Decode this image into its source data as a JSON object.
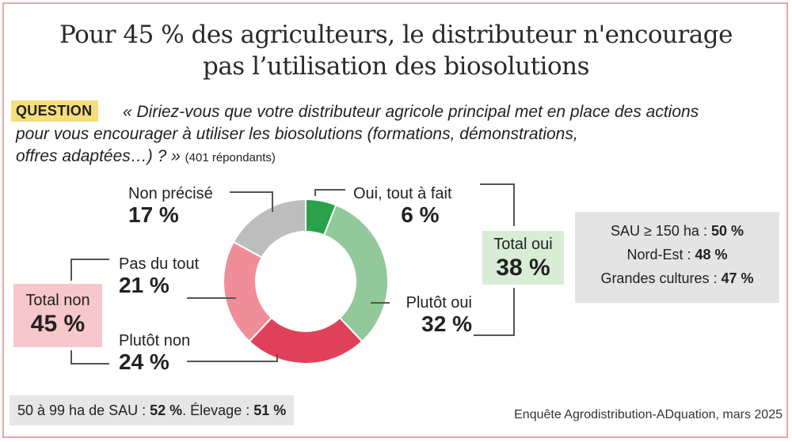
{
  "title_line1": "Pour 45 % des agriculteurs, le distributeur n'encourage",
  "title_line2": "pas l’utilisation des biosolutions",
  "question": {
    "badge": "QUESTION",
    "line1": "« Diriez-vous que votre distributeur agricole principal met en place des actions",
    "line2": "pour vous encourager à utiliser les biosolutions (formations, démonstrations,",
    "line3": "offres adaptées…) ? »",
    "respondents": "(401 répondants)"
  },
  "chart_data": {
    "type": "pie",
    "variant": "donut",
    "categories": [
      "Oui, tout à fait",
      "Plutôt oui",
      "Plutôt non",
      "Pas du tout",
      "Non précisé"
    ],
    "values": [
      6,
      32,
      24,
      21,
      17
    ],
    "value_labels": [
      "6 %",
      "32 %",
      "24 %",
      "21 %",
      "17 %"
    ],
    "colors": [
      "#2aa24a",
      "#93c99a",
      "#e0415a",
      "#ef8e98",
      "#bdbdbd"
    ],
    "title": "Pour 45 % des agriculteurs, le distributeur n'encourage pas l’utilisation des biosolutions"
  },
  "totals": {
    "oui_label": "Total oui",
    "oui_value": "38 %",
    "non_label": "Total non",
    "non_value": "45 %"
  },
  "sau_box": {
    "line1_label": "SAU ≥ 150 ha : ",
    "line1_value": "50 %",
    "line2_label": "Nord-Est : ",
    "line2_value": "48 %",
    "line3_label": "Grandes cultures : ",
    "line3_value": "47 %"
  },
  "bottom_note": {
    "part1": "50 à 99 ha de SAU : ",
    "value1": "52 %",
    "part2": ". Élevage : ",
    "value2": "51 %"
  },
  "source": "Enquête Agrodistribution-ADquation, mars 2025"
}
